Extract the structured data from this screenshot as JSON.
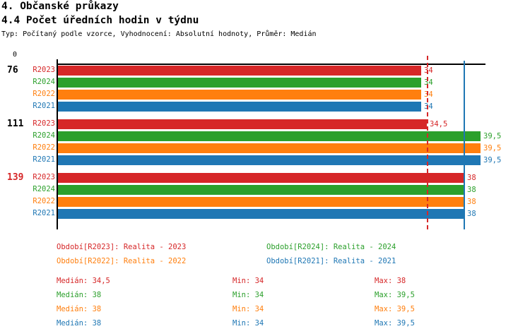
{
  "header": {
    "title1": "4. Občanské průkazy",
    "title2": "4.4 Počet úředních hodin v týdnu",
    "subtitle": "Typ: Počítaný podle vzorce, Vyhodnocení: Absolutní hodnoty, Průměr: Medián"
  },
  "colors": {
    "red": "#d62728",
    "green": "#2ca02c",
    "orange": "#ff7f0e",
    "blue": "#1f77b4",
    "axis": "#000000"
  },
  "chart_data": {
    "type": "bar",
    "orientation": "horizontal",
    "xlim": [
      0,
      40
    ],
    "x_origin_label": "0",
    "grid": false,
    "categories": [
      "76",
      "111",
      "139"
    ],
    "category_label_colors": [
      "#000000",
      "#000000",
      "#d62728"
    ],
    "series": [
      {
        "name": "R2023",
        "color": "#d62728",
        "values": [
          34,
          34.5,
          38
        ],
        "value_labels": [
          "34",
          "34,5",
          "38"
        ]
      },
      {
        "name": "R2024",
        "color": "#2ca02c",
        "values": [
          34,
          39.5,
          38
        ],
        "value_labels": [
          "34",
          "39,5",
          "38"
        ]
      },
      {
        "name": "R2022",
        "color": "#ff7f0e",
        "values": [
          34,
          39.5,
          38
        ],
        "value_labels": [
          "34",
          "39,5",
          "38"
        ]
      },
      {
        "name": "R2021",
        "color": "#1f77b4",
        "values": [
          34,
          39.5,
          38
        ],
        "value_labels": [
          "34",
          "39,5",
          "38"
        ]
      }
    ],
    "reference_lines": [
      {
        "value": 34.5,
        "color": "#d62728",
        "style": "dashed"
      },
      {
        "value": 38,
        "color": "#1f77b4",
        "style": "solid"
      }
    ]
  },
  "legend": {
    "items": [
      {
        "text": "Období[R2023]: Realita - 2023",
        "color": "#d62728"
      },
      {
        "text": "Období[R2024]: Realita - 2024",
        "color": "#2ca02c"
      },
      {
        "text": "Období[R2022]: Realita - 2022",
        "color": "#ff7f0e"
      },
      {
        "text": "Období[R2021]: Realita - 2021",
        "color": "#1f77b4"
      }
    ]
  },
  "stats": {
    "rows": [
      {
        "median": "Medián: 34,5",
        "min": "Min: 34",
        "max": "Max: 38",
        "color": "#d62728"
      },
      {
        "median": "Medián: 38",
        "min": "Min: 34",
        "max": "Max: 39,5",
        "color": "#2ca02c"
      },
      {
        "median": "Medián: 38",
        "min": "Min: 34",
        "max": "Max: 39,5",
        "color": "#ff7f0e"
      },
      {
        "median": "Medián: 38",
        "min": "Min: 34",
        "max": "Max: 39,5",
        "color": "#1f77b4"
      }
    ]
  }
}
